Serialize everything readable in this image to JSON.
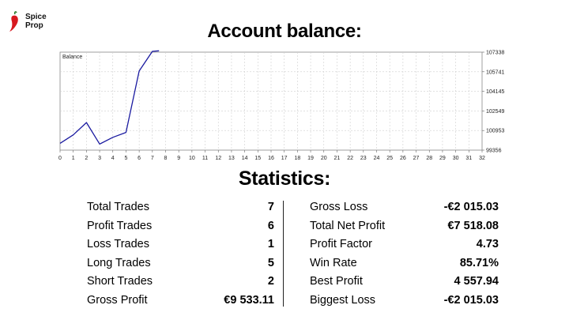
{
  "brand": {
    "name_line1": "Spice",
    "name_line2": "Prop"
  },
  "account_title": "Account balance:",
  "statistics_title": "Statistics:",
  "chart_data": {
    "type": "line",
    "title": "Balance",
    "x": [
      0,
      1,
      2,
      3,
      4,
      5,
      6,
      7,
      7.5
    ],
    "series": [
      {
        "values": [
          99910,
          100600,
          101600,
          99850,
          100400,
          100800,
          105800,
          107400,
          107450
        ]
      }
    ],
    "xlim": [
      0,
      32
    ],
    "ylim": [
      99356,
      107338
    ],
    "xticks": [
      "0",
      "1",
      "2",
      "3",
      "4",
      "5",
      "6",
      "7",
      "8",
      "9",
      "10",
      "11",
      "12",
      "13",
      "14",
      "15",
      "16",
      "17",
      "18",
      "19",
      "20",
      "21",
      "22",
      "23",
      "24",
      "25",
      "26",
      "27",
      "28",
      "29",
      "30",
      "31",
      "32"
    ],
    "yticks": [
      "99356",
      "100953",
      "102549",
      "104145",
      "105741",
      "107338"
    ],
    "grid": true,
    "line_color": "#1a1aa0"
  },
  "stats": {
    "left": [
      {
        "label": "Total Trades",
        "value": "7"
      },
      {
        "label": "Profit Trades",
        "value": "6"
      },
      {
        "label": "Loss Trades",
        "value": "1"
      },
      {
        "label": "Long Trades",
        "value": "5"
      },
      {
        "label": "Short Trades",
        "value": "2"
      },
      {
        "label": "Gross Profit",
        "value": "€9 533.11"
      }
    ],
    "right": [
      {
        "label": "Gross Loss",
        "value": "-€2 015.03"
      },
      {
        "label": "Total Net Profit",
        "value": "€7 518.08"
      },
      {
        "label": "Profit Factor",
        "value": "4.73"
      },
      {
        "label": "Win Rate",
        "value": "85.71%"
      },
      {
        "label": "Best Profit",
        "value": "4 557.94"
      },
      {
        "label": "Biggest Loss",
        "value": "-€2 015.03"
      }
    ]
  }
}
